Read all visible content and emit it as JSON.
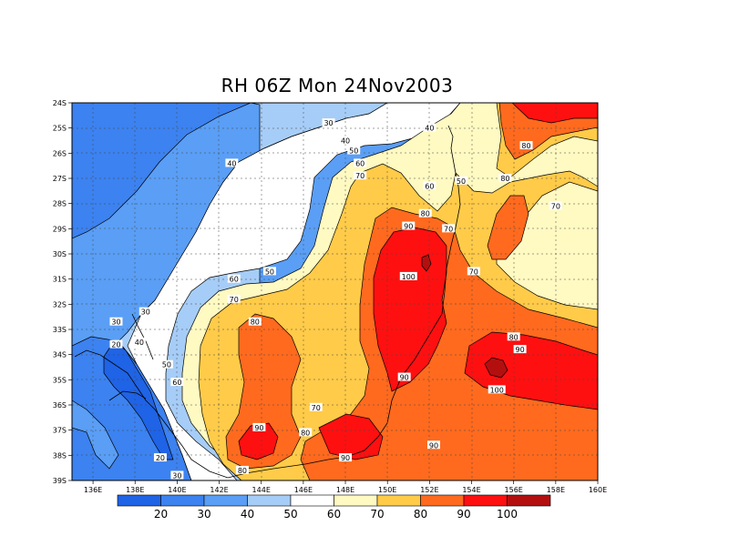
{
  "title": "RH 06Z Mon 24Nov2003",
  "map": {
    "lon_range": [
      135,
      160
    ],
    "lat_range": [
      -39,
      -24
    ],
    "lon_ticks": [
      "136E",
      "138E",
      "140E",
      "142E",
      "144E",
      "146E",
      "148E",
      "150E",
      "152E",
      "154E",
      "156E",
      "158E",
      "160E"
    ],
    "lat_ticks": [
      "24S",
      "25S",
      "26S",
      "27S",
      "28S",
      "29S",
      "30S",
      "31S",
      "32S",
      "33S",
      "34S",
      "35S",
      "36S",
      "37S",
      "38S",
      "39S"
    ],
    "contour_labels": [
      {
        "text": "30",
        "lon": 147.2,
        "lat": -24.8
      },
      {
        "text": "40",
        "lon": 152.0,
        "lat": -25.0
      },
      {
        "text": "40",
        "lon": 148.0,
        "lat": -25.5
      },
      {
        "text": "50",
        "lon": 148.4,
        "lat": -25.9
      },
      {
        "text": "60",
        "lon": 148.7,
        "lat": -26.4
      },
      {
        "text": "70",
        "lon": 148.7,
        "lat": -26.9
      },
      {
        "text": "40",
        "lon": 142.6,
        "lat": -26.4
      },
      {
        "text": "60",
        "lon": 152.0,
        "lat": -27.3
      },
      {
        "text": "50",
        "lon": 153.5,
        "lat": -27.1
      },
      {
        "text": "80",
        "lon": 155.6,
        "lat": -27.0
      },
      {
        "text": "80",
        "lon": 156.6,
        "lat": -25.7
      },
      {
        "text": "70",
        "lon": 158.0,
        "lat": -28.1
      },
      {
        "text": "80",
        "lon": 151.8,
        "lat": -28.4
      },
      {
        "text": "90",
        "lon": 151.0,
        "lat": -28.9
      },
      {
        "text": "70",
        "lon": 152.9,
        "lat": -29.0
      },
      {
        "text": "100",
        "lon": 151.0,
        "lat": -30.9
      },
      {
        "text": "70",
        "lon": 154.1,
        "lat": -30.7
      },
      {
        "text": "50",
        "lon": 144.4,
        "lat": -30.7
      },
      {
        "text": "60",
        "lon": 142.7,
        "lat": -31.0
      },
      {
        "text": "70",
        "lon": 142.7,
        "lat": -31.8
      },
      {
        "text": "80",
        "lon": 143.7,
        "lat": -32.7
      },
      {
        "text": "30",
        "lon": 138.5,
        "lat": -32.3
      },
      {
        "text": "30",
        "lon": 137.1,
        "lat": -32.7
      },
      {
        "text": "40",
        "lon": 138.2,
        "lat": -33.5
      },
      {
        "text": "20",
        "lon": 137.1,
        "lat": -33.6
      },
      {
        "text": "50",
        "lon": 139.5,
        "lat": -34.4
      },
      {
        "text": "60",
        "lon": 140.0,
        "lat": -35.1
      },
      {
        "text": "90",
        "lon": 150.8,
        "lat": -34.9
      },
      {
        "text": "80",
        "lon": 156.0,
        "lat": -33.3
      },
      {
        "text": "90",
        "lon": 156.3,
        "lat": -33.8
      },
      {
        "text": "100",
        "lon": 155.2,
        "lat": -35.4
      },
      {
        "text": "70",
        "lon": 146.6,
        "lat": -36.1
      },
      {
        "text": "90",
        "lon": 143.9,
        "lat": -36.9
      },
      {
        "text": "80",
        "lon": 146.1,
        "lat": -37.1
      },
      {
        "text": "90",
        "lon": 148.0,
        "lat": -38.1
      },
      {
        "text": "90",
        "lon": 152.2,
        "lat": -37.6
      },
      {
        "text": "20",
        "lon": 139.2,
        "lat": -38.1
      },
      {
        "text": "80",
        "lon": 143.1,
        "lat": -38.6
      },
      {
        "text": "30",
        "lon": 140.0,
        "lat": -38.8
      }
    ]
  },
  "colorbar": {
    "labels": [
      "20",
      "30",
      "40",
      "50",
      "60",
      "70",
      "80",
      "90",
      "100"
    ],
    "colors": [
      "#1f63e6",
      "#3c82f0",
      "#5a9ef5",
      "#a6cdf7",
      "#ffffff",
      "#fff9c2",
      "#ffcb49",
      "#ff6a1e",
      "#ff1010",
      "#b40f0f"
    ]
  },
  "rh_colors": {
    "lt20": "#1f63e6",
    "c20_30": "#3c82f0",
    "c30_40": "#5a9ef5",
    "c40_50": "#a6cdf7",
    "c50_60": "#ffffff",
    "c60_70": "#fff9c2",
    "c70_80": "#ffcb49",
    "c80_90": "#ff6a1e",
    "c90_100": "#ff1010",
    "gt100": "#b40f0f"
  }
}
